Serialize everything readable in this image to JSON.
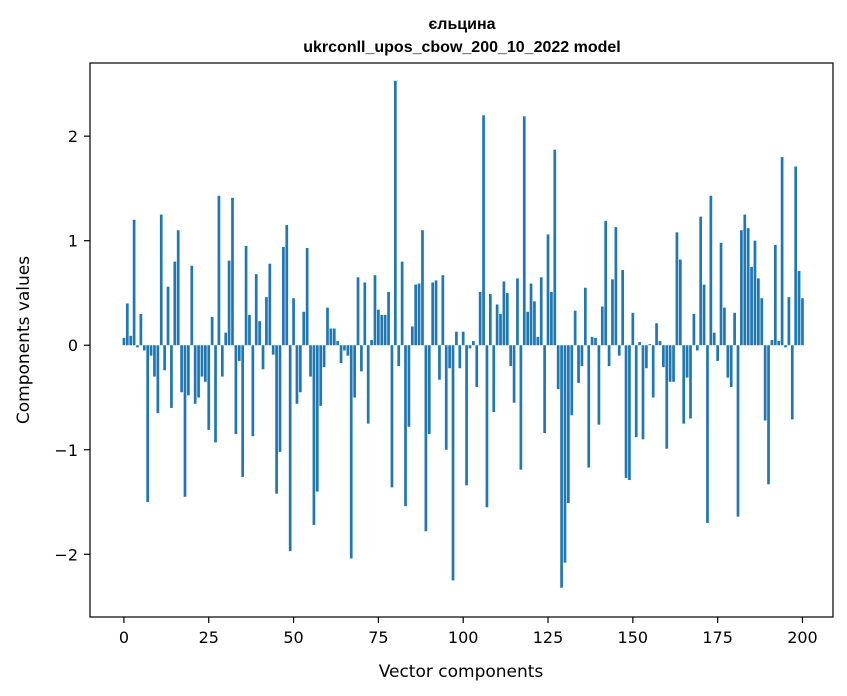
{
  "chart_data": {
    "type": "bar",
    "title_line1": "єльцина",
    "title_line2": "ukrconll_upos_cbow_200_10_2022 model",
    "xlabel": "Vector components",
    "ylabel": "Components values",
    "xlim": [
      -10,
      209
    ],
    "ylim": [
      -2.6,
      2.7
    ],
    "xticks": [
      0,
      25,
      50,
      75,
      100,
      125,
      150,
      175,
      200
    ],
    "xtick_labels": [
      "0",
      "25",
      "50",
      "75",
      "100",
      "125",
      "150",
      "175",
      "200"
    ],
    "yticks": [
      -2,
      -1,
      0,
      1,
      2
    ],
    "ytick_labels": [
      "−2",
      "−1",
      "0",
      "1",
      "2"
    ],
    "bar_color": "#1f77b4",
    "values": [
      0.07,
      0.4,
      0.09,
      1.2,
      -0.02,
      0.3,
      -0.05,
      -1.5,
      -0.1,
      -0.3,
      -0.65,
      1.25,
      -0.24,
      0.56,
      -0.6,
      0.8,
      1.1,
      -0.45,
      -1.45,
      -0.48,
      0.76,
      -0.56,
      -0.5,
      -0.3,
      -0.35,
      -0.81,
      0.27,
      -0.93,
      1.43,
      -0.3,
      0.12,
      0.81,
      1.41,
      -0.85,
      -0.15,
      -1.26,
      0.95,
      0.29,
      -0.87,
      0.68,
      0.23,
      -0.23,
      0.46,
      0.78,
      -0.09,
      -1.42,
      -1.02,
      0.94,
      1.15,
      -1.97,
      0.45,
      -0.56,
      -0.45,
      0.32,
      0.93,
      -0.3,
      -1.72,
      -1.4,
      -0.58,
      -0.21,
      0.36,
      0.16,
      0.16,
      0.04,
      -0.17,
      -0.05,
      -0.1,
      -2.04,
      -0.5,
      0.65,
      -0.25,
      0.6,
      -0.75,
      0.05,
      0.67,
      0.34,
      0.29,
      0.29,
      0.51,
      -1.36,
      2.53,
      -0.2,
      0.8,
      -1.54,
      -0.78,
      0.18,
      0.58,
      0.59,
      1.1,
      -1.78,
      -0.85,
      0.6,
      0.62,
      -0.33,
      0.67,
      -1.0,
      -0.22,
      -2.25,
      0.13,
      -0.22,
      0.13,
      -1.34,
      -0.03,
      0.04,
      -0.4,
      0.51,
      2.2,
      -1.55,
      0.49,
      -0.64,
      0.39,
      0.3,
      0.61,
      0.5,
      -0.2,
      -0.55,
      0.64,
      -1.19,
      2.19,
      0.32,
      0.59,
      0.42,
      0.08,
      0.65,
      -0.84,
      1.06,
      0.51,
      1.87,
      -0.42,
      -2.32,
      -2.08,
      -1.51,
      -0.67,
      0.33,
      -0.36,
      -0.2,
      0.55,
      -1.17,
      0.08,
      0.07,
      -0.76,
      0.37,
      1.19,
      -0.2,
      0.63,
      1.13,
      -0.1,
      0.72,
      -1.27,
      -1.29,
      0.31,
      -0.88,
      0.03,
      -0.9,
      -0.22,
      0.01,
      -0.5,
      0.21,
      0.04,
      -0.21,
      -0.99,
      -0.35,
      -0.35,
      1.08,
      0.82,
      -0.75,
      -0.31,
      -0.7,
      0.3,
      -0.05,
      1.23,
      0.58,
      -1.7,
      1.43,
      0.12,
      -0.15,
      0.98,
      0.36,
      -0.31,
      -0.4,
      0.31,
      -1.64,
      1.1,
      1.25,
      1.12,
      0.75,
      1.0,
      0.64,
      0.45,
      -0.72,
      -1.33,
      0.05,
      0.96,
      0.04,
      1.8,
      -0.02,
      0.46,
      -0.71,
      1.71,
      0.71,
      0.45
    ]
  }
}
